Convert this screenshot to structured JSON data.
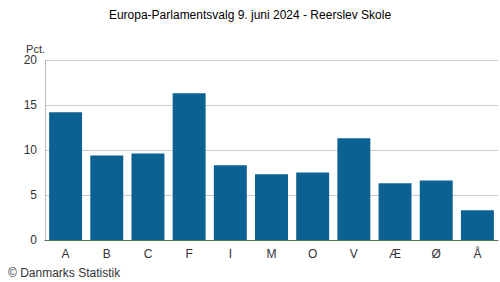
{
  "chart_data": {
    "type": "bar",
    "title": "Europa-Parlamentsvalg 9. juni 2024 - Reerslev Skole",
    "y_label": "Pct.",
    "source": "© Danmarks Statistik",
    "categories": [
      "A",
      "B",
      "C",
      "F",
      "I",
      "M",
      "O",
      "V",
      "Æ",
      "Ø",
      "Å"
    ],
    "values": [
      14.2,
      9.4,
      9.6,
      16.3,
      8.3,
      7.3,
      7.5,
      11.3,
      6.3,
      6.6,
      3.3
    ],
    "color": "#0b6192",
    "ylim": [
      0,
      20
    ],
    "yticks": [
      0,
      5,
      10,
      15,
      20
    ],
    "grid": true
  }
}
